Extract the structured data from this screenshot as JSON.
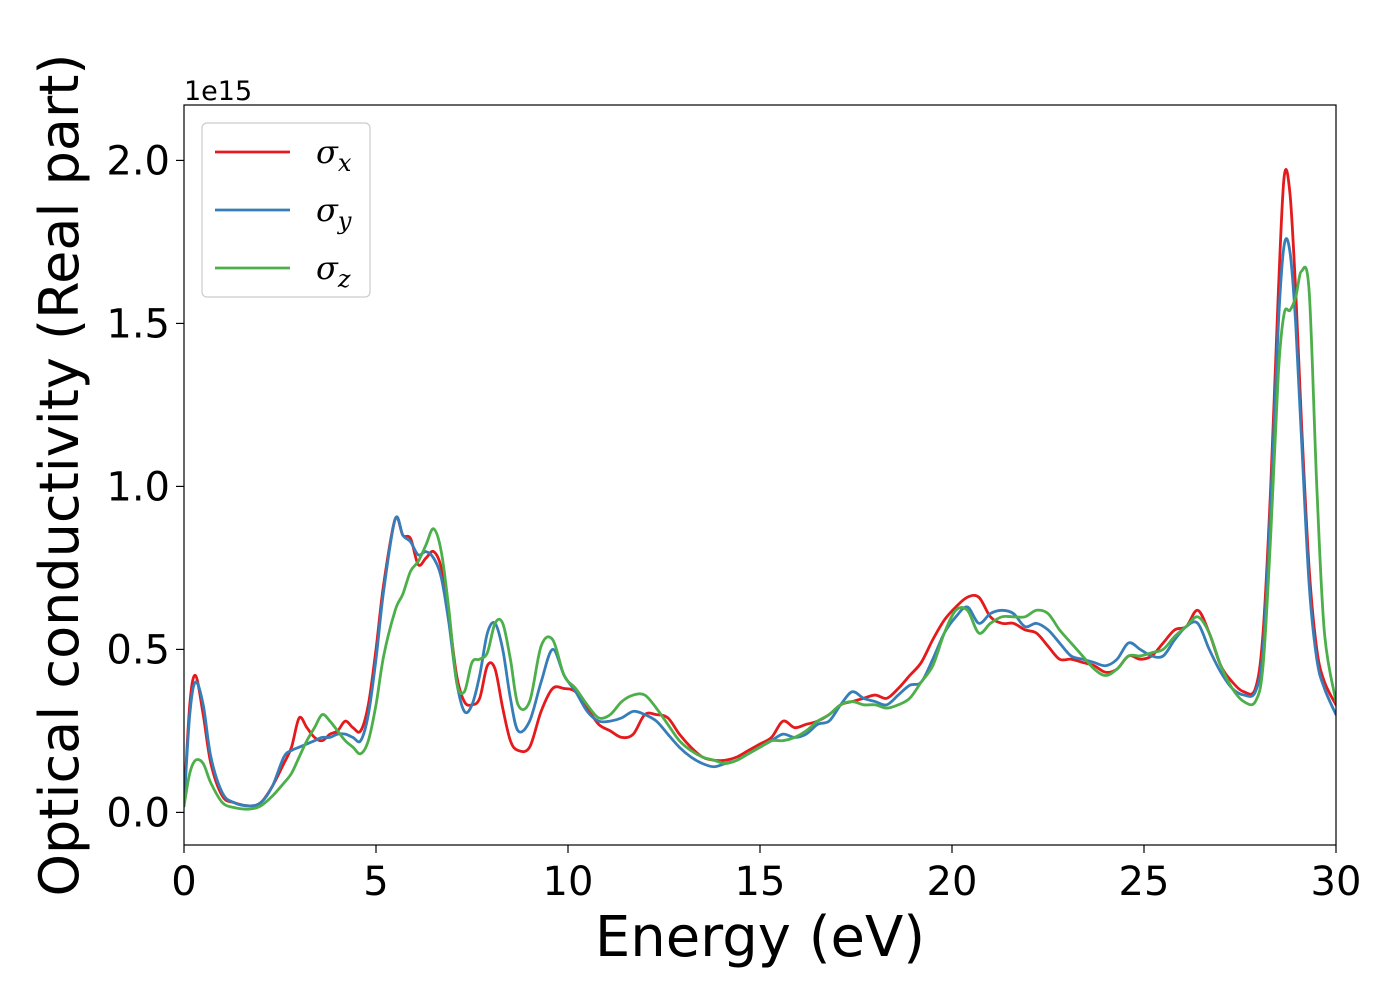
{
  "chart_data": {
    "type": "line",
    "xlabel": "Energy (eV)",
    "ylabel": "Optical conductivity (Real part)",
    "y_offset_label": "1e15",
    "xlim": [
      0,
      30
    ],
    "ylim": [
      -0.1,
      2.17
    ],
    "xticks": [
      0,
      5,
      10,
      15,
      20,
      25,
      30
    ],
    "xtick_labels": [
      "0",
      "5",
      "10",
      "15",
      "20",
      "25",
      "30"
    ],
    "yticks": [
      0.0,
      0.5,
      1.0,
      1.5,
      2.0
    ],
    "ytick_labels": [
      "0.0",
      "0.5",
      "1.0",
      "1.5",
      "2.0"
    ],
    "grid": false,
    "legend_position": "top-left",
    "series": [
      {
        "name": "σx",
        "symbol": "σ",
        "subscript": "x",
        "color": "#e41a1c",
        "x": [
          0,
          0.15,
          0.3,
          0.5,
          0.7,
          1.0,
          1.3,
          1.7,
          2.0,
          2.3,
          2.6,
          2.8,
          3.0,
          3.2,
          3.4,
          3.6,
          3.8,
          4.0,
          4.2,
          4.4,
          4.6,
          4.8,
          5.0,
          5.2,
          5.5,
          5.7,
          5.9,
          6.1,
          6.3,
          6.5,
          6.7,
          6.9,
          7.1,
          7.3,
          7.5,
          7.7,
          7.9,
          8.1,
          8.3,
          8.5,
          8.7,
          9.0,
          9.3,
          9.6,
          9.9,
          10.2,
          10.5,
          10.8,
          11.1,
          11.4,
          11.7,
          12.0,
          12.3,
          12.6,
          12.9,
          13.2,
          13.5,
          13.8,
          14.1,
          14.4,
          14.7,
          15.0,
          15.3,
          15.6,
          15.9,
          16.2,
          16.5,
          16.8,
          17.1,
          17.4,
          17.7,
          18.0,
          18.3,
          18.6,
          18.9,
          19.2,
          19.5,
          19.8,
          20.1,
          20.4,
          20.7,
          21.0,
          21.3,
          21.6,
          21.9,
          22.2,
          22.5,
          22.8,
          23.1,
          23.4,
          23.7,
          24.0,
          24.3,
          24.6,
          24.9,
          25.2,
          25.5,
          25.8,
          26.1,
          26.4,
          26.7,
          27.0,
          27.3,
          27.6,
          27.9,
          28.1,
          28.3,
          28.5,
          28.65,
          28.8,
          28.95,
          29.1,
          29.3,
          29.5,
          29.7,
          30.0
        ],
        "y": [
          0.02,
          0.33,
          0.42,
          0.3,
          0.15,
          0.05,
          0.03,
          0.02,
          0.03,
          0.08,
          0.15,
          0.2,
          0.29,
          0.26,
          0.23,
          0.22,
          0.24,
          0.25,
          0.28,
          0.26,
          0.25,
          0.33,
          0.5,
          0.7,
          0.9,
          0.85,
          0.84,
          0.76,
          0.78,
          0.8,
          0.75,
          0.6,
          0.42,
          0.34,
          0.33,
          0.35,
          0.45,
          0.44,
          0.32,
          0.22,
          0.19,
          0.2,
          0.31,
          0.38,
          0.38,
          0.37,
          0.32,
          0.27,
          0.25,
          0.23,
          0.24,
          0.3,
          0.3,
          0.29,
          0.24,
          0.2,
          0.17,
          0.16,
          0.16,
          0.17,
          0.19,
          0.21,
          0.23,
          0.28,
          0.26,
          0.27,
          0.28,
          0.3,
          0.33,
          0.34,
          0.35,
          0.36,
          0.35,
          0.38,
          0.42,
          0.46,
          0.53,
          0.59,
          0.63,
          0.66,
          0.66,
          0.6,
          0.58,
          0.58,
          0.56,
          0.55,
          0.51,
          0.47,
          0.47,
          0.46,
          0.45,
          0.43,
          0.44,
          0.48,
          0.47,
          0.48,
          0.52,
          0.56,
          0.57,
          0.62,
          0.55,
          0.45,
          0.4,
          0.37,
          0.38,
          0.55,
          1.0,
          1.6,
          1.95,
          1.9,
          1.6,
          1.2,
          0.75,
          0.5,
          0.4,
          0.33
        ]
      },
      {
        "name": "σy",
        "symbol": "σ",
        "subscript": "y",
        "color": "#377eb8",
        "x": [
          0,
          0.15,
          0.3,
          0.5,
          0.7,
          1.0,
          1.3,
          1.7,
          2.0,
          2.3,
          2.6,
          2.8,
          3.0,
          3.2,
          3.4,
          3.6,
          3.8,
          4.0,
          4.2,
          4.4,
          4.6,
          4.8,
          5.0,
          5.2,
          5.5,
          5.7,
          5.9,
          6.1,
          6.3,
          6.5,
          6.7,
          6.9,
          7.1,
          7.3,
          7.5,
          7.7,
          7.9,
          8.1,
          8.3,
          8.5,
          8.7,
          9.0,
          9.3,
          9.6,
          9.9,
          10.2,
          10.5,
          10.8,
          11.1,
          11.4,
          11.7,
          12.0,
          12.3,
          12.6,
          12.9,
          13.2,
          13.5,
          13.8,
          14.1,
          14.4,
          14.7,
          15.0,
          15.3,
          15.6,
          15.9,
          16.2,
          16.5,
          16.8,
          17.1,
          17.4,
          17.7,
          18.0,
          18.3,
          18.6,
          18.9,
          19.2,
          19.5,
          19.8,
          20.1,
          20.4,
          20.7,
          21.0,
          21.3,
          21.6,
          21.9,
          22.2,
          22.5,
          22.8,
          23.1,
          23.4,
          23.7,
          24.0,
          24.3,
          24.6,
          24.9,
          25.2,
          25.5,
          25.8,
          26.1,
          26.4,
          26.7,
          27.0,
          27.3,
          27.6,
          27.9,
          28.1,
          28.3,
          28.5,
          28.65,
          28.8,
          28.95,
          29.1,
          29.3,
          29.5,
          29.7,
          30.0
        ],
        "y": [
          0.02,
          0.3,
          0.4,
          0.33,
          0.17,
          0.06,
          0.03,
          0.02,
          0.03,
          0.08,
          0.17,
          0.19,
          0.2,
          0.21,
          0.22,
          0.23,
          0.23,
          0.24,
          0.24,
          0.23,
          0.22,
          0.3,
          0.47,
          0.68,
          0.9,
          0.85,
          0.83,
          0.79,
          0.8,
          0.78,
          0.72,
          0.58,
          0.4,
          0.31,
          0.33,
          0.42,
          0.55,
          0.58,
          0.5,
          0.35,
          0.25,
          0.28,
          0.4,
          0.5,
          0.42,
          0.37,
          0.31,
          0.28,
          0.28,
          0.29,
          0.31,
          0.3,
          0.28,
          0.24,
          0.2,
          0.17,
          0.15,
          0.14,
          0.15,
          0.16,
          0.18,
          0.2,
          0.22,
          0.24,
          0.23,
          0.24,
          0.27,
          0.28,
          0.33,
          0.37,
          0.35,
          0.34,
          0.33,
          0.36,
          0.39,
          0.4,
          0.47,
          0.55,
          0.6,
          0.63,
          0.58,
          0.61,
          0.62,
          0.61,
          0.57,
          0.58,
          0.56,
          0.52,
          0.48,
          0.47,
          0.46,
          0.45,
          0.47,
          0.52,
          0.5,
          0.48,
          0.48,
          0.53,
          0.57,
          0.58,
          0.5,
          0.43,
          0.38,
          0.36,
          0.37,
          0.5,
          0.95,
          1.5,
          1.74,
          1.72,
          1.5,
          1.15,
          0.7,
          0.47,
          0.38,
          0.3
        ]
      },
      {
        "name": "σz",
        "symbol": "σ",
        "subscript": "z",
        "color": "#4daf4a",
        "x": [
          0,
          0.15,
          0.3,
          0.5,
          0.7,
          1.0,
          1.3,
          1.7,
          2.0,
          2.3,
          2.6,
          2.8,
          3.0,
          3.2,
          3.4,
          3.6,
          3.8,
          4.0,
          4.2,
          4.4,
          4.6,
          4.8,
          5.0,
          5.2,
          5.5,
          5.7,
          5.9,
          6.1,
          6.3,
          6.5,
          6.7,
          6.9,
          7.1,
          7.3,
          7.5,
          7.7,
          7.9,
          8.1,
          8.3,
          8.5,
          8.7,
          9.0,
          9.3,
          9.6,
          9.9,
          10.2,
          10.5,
          10.8,
          11.1,
          11.4,
          11.7,
          12.0,
          12.3,
          12.6,
          12.9,
          13.2,
          13.5,
          13.8,
          14.1,
          14.4,
          14.7,
          15.0,
          15.3,
          15.6,
          15.9,
          16.2,
          16.5,
          16.8,
          17.1,
          17.4,
          17.7,
          18.0,
          18.3,
          18.6,
          18.9,
          19.2,
          19.5,
          19.8,
          20.1,
          20.4,
          20.7,
          21.0,
          21.3,
          21.6,
          21.9,
          22.2,
          22.5,
          22.8,
          23.1,
          23.4,
          23.7,
          24.0,
          24.3,
          24.6,
          24.9,
          25.2,
          25.5,
          25.8,
          26.1,
          26.4,
          26.7,
          27.0,
          27.3,
          27.6,
          27.9,
          28.1,
          28.3,
          28.5,
          28.65,
          28.8,
          28.95,
          29.1,
          29.3,
          29.5,
          29.7,
          30.0
        ],
        "y": [
          0.02,
          0.12,
          0.16,
          0.15,
          0.09,
          0.03,
          0.015,
          0.01,
          0.02,
          0.05,
          0.09,
          0.12,
          0.17,
          0.22,
          0.26,
          0.3,
          0.28,
          0.25,
          0.22,
          0.2,
          0.18,
          0.22,
          0.33,
          0.48,
          0.62,
          0.67,
          0.74,
          0.77,
          0.82,
          0.87,
          0.8,
          0.62,
          0.4,
          0.37,
          0.46,
          0.47,
          0.49,
          0.58,
          0.58,
          0.47,
          0.33,
          0.34,
          0.51,
          0.53,
          0.42,
          0.38,
          0.33,
          0.29,
          0.3,
          0.34,
          0.36,
          0.36,
          0.32,
          0.27,
          0.22,
          0.19,
          0.17,
          0.16,
          0.15,
          0.16,
          0.18,
          0.2,
          0.22,
          0.22,
          0.23,
          0.25,
          0.28,
          0.3,
          0.33,
          0.34,
          0.33,
          0.33,
          0.32,
          0.33,
          0.35,
          0.4,
          0.45,
          0.55,
          0.62,
          0.62,
          0.55,
          0.58,
          0.6,
          0.6,
          0.6,
          0.62,
          0.61,
          0.56,
          0.52,
          0.48,
          0.44,
          0.42,
          0.44,
          0.48,
          0.48,
          0.49,
          0.5,
          0.54,
          0.57,
          0.6,
          0.55,
          0.45,
          0.38,
          0.34,
          0.34,
          0.45,
          0.85,
          1.35,
          1.53,
          1.54,
          1.58,
          1.66,
          1.6,
          1.0,
          0.55,
          0.34
        ]
      }
    ]
  }
}
